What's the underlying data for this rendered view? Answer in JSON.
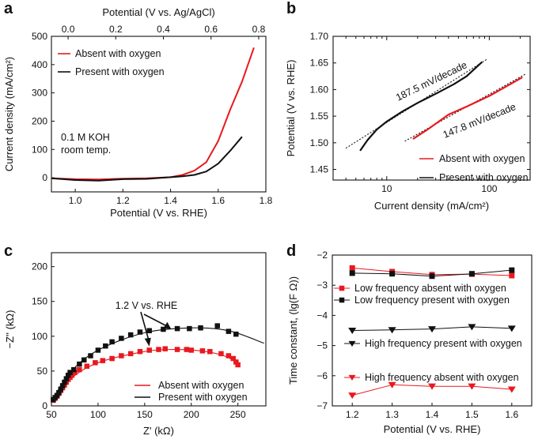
{
  "chart_data": [
    {
      "panel": "a",
      "type": "line",
      "xlabel": "Potential (V vs. RHE)",
      "ylabel": "Current density (mA/cm²)",
      "x2label": "Potential (V vs. Ag/AgCl)",
      "xlim": [
        0.9,
        1.8
      ],
      "ylim": [
        -50,
        500
      ],
      "x2lim": [
        -0.07,
        0.83
      ],
      "xticks": [
        "1.0",
        "1.2",
        "1.4",
        "1.6",
        "1.8"
      ],
      "yticks": [
        "0",
        "100",
        "200",
        "300",
        "400",
        "500"
      ],
      "x2ticks": [
        "0.0",
        "0.2",
        "0.4",
        "0.6",
        "0.8"
      ],
      "annotation": [
        "0.1 M KOH",
        "room temp."
      ],
      "series": [
        {
          "name": "Absent with oxygen",
          "color": "#e8191f",
          "x": [
            0.9,
            1.0,
            1.1,
            1.2,
            1.3,
            1.4,
            1.45,
            1.5,
            1.55,
            1.6,
            1.65,
            1.7,
            1.75
          ],
          "y": [
            -2,
            -5,
            -6,
            -3,
            -2,
            2,
            10,
            25,
            55,
            130,
            240,
            340,
            460
          ]
        },
        {
          "name": "Present with oxygen",
          "color": "#111111",
          "x": [
            0.9,
            1.0,
            1.1,
            1.2,
            1.3,
            1.4,
            1.45,
            1.5,
            1.55,
            1.6,
            1.65,
            1.7
          ],
          "y": [
            -2,
            -8,
            -10,
            -5,
            -4,
            2,
            5,
            10,
            22,
            50,
            95,
            145
          ]
        }
      ]
    },
    {
      "panel": "b",
      "type": "line",
      "xlabel": "Current density (mA/cm²)",
      "ylabel": "Potential (V vs. RHE)",
      "xscale": "log",
      "xlim": [
        3,
        250
      ],
      "ylim": [
        1.43,
        1.7
      ],
      "xticks": [
        "10",
        "100"
      ],
      "yticks": [
        "1.45",
        "1.50",
        "1.55",
        "1.60",
        "1.65",
        "1.70"
      ],
      "annotations": [
        "187.5 mV/decade",
        "147.8 mV/decade"
      ],
      "series": [
        {
          "name": "Absent with oxygen",
          "color": "#e8191f",
          "x": [
            18,
            25,
            40,
            60,
            100,
            150,
            210
          ],
          "y": [
            1.507,
            1.525,
            1.553,
            1.568,
            1.588,
            1.607,
            1.623
          ]
        },
        {
          "name": "Present with oxygen",
          "color": "#111111",
          "x": [
            5.5,
            6.5,
            8,
            10,
            14,
            20,
            30,
            45,
            60,
            85
          ],
          "y": [
            1.485,
            1.505,
            1.525,
            1.54,
            1.558,
            1.575,
            1.592,
            1.61,
            1.625,
            1.652
          ]
        }
      ],
      "fits": [
        {
          "x": [
            4,
            95
          ],
          "y": [
            1.49,
            1.657
          ]
        },
        {
          "x": [
            15,
            230
          ],
          "y": [
            1.503,
            1.63
          ]
        }
      ]
    },
    {
      "panel": "c",
      "type": "scatter",
      "xlabel": "Z' (kΩ)",
      "ylabel": "−Z'' (kΩ)",
      "xlim": [
        50,
        280
      ],
      "ylim": [
        0,
        220
      ],
      "xticks": [
        "50",
        "100",
        "150",
        "200",
        "250"
      ],
      "yticks": [
        "0",
        "50",
        "100",
        "150",
        "200"
      ],
      "annotation": "1.2 V vs. RHE",
      "series": [
        {
          "name": "Absent with oxygen",
          "color": "#e8191f",
          "points": [
            [
              52,
              8
            ],
            [
              54,
              11
            ],
            [
              56,
              14
            ],
            [
              58,
              18
            ],
            [
              60,
              22
            ],
            [
              62,
              26
            ],
            [
              64,
              30
            ],
            [
              66,
              34
            ],
            [
              68,
              38
            ],
            [
              70,
              41
            ],
            [
              72,
              44
            ],
            [
              75,
              48
            ],
            [
              80,
              52
            ],
            [
              88,
              57
            ],
            [
              97,
              62
            ],
            [
              105,
              65
            ],
            [
              115,
              68
            ],
            [
              125,
              72
            ],
            [
              135,
              75
            ],
            [
              145,
              78
            ],
            [
              155,
              80
            ],
            [
              165,
              81
            ],
            [
              172,
              82
            ],
            [
              185,
              81
            ],
            [
              195,
              81
            ],
            [
              200,
              80
            ],
            [
              212,
              79
            ],
            [
              220,
              78
            ],
            [
              232,
              75
            ],
            [
              240,
              72
            ],
            [
              245,
              68
            ],
            [
              248,
              63
            ],
            [
              250,
              59
            ]
          ],
          "fit": [
            [
              50,
              5
            ],
            [
              70,
              38
            ],
            [
              100,
              62
            ],
            [
              150,
              78
            ],
            [
              180,
              81
            ],
            [
              210,
              79
            ],
            [
              235,
              72
            ],
            [
              252,
              60
            ]
          ]
        },
        {
          "name": "Present with oxygen",
          "color": "#111111",
          "points": [
            [
              52,
              9
            ],
            [
              54,
              12
            ],
            [
              56,
              15
            ],
            [
              58,
              19
            ],
            [
              60,
              24
            ],
            [
              62,
              29
            ],
            [
              64,
              34
            ],
            [
              66,
              39
            ],
            [
              68,
              44
            ],
            [
              70,
              48
            ],
            [
              74,
              52
            ],
            [
              80,
              60
            ],
            [
              85,
              66
            ],
            [
              92,
              72
            ],
            [
              100,
              80
            ],
            [
              108,
              86
            ],
            [
              115,
              92
            ],
            [
              125,
              97
            ],
            [
              135,
              102
            ],
            [
              145,
              106
            ],
            [
              155,
              108
            ],
            [
              170,
              110
            ],
            [
              185,
              111
            ],
            [
              198,
              111
            ],
            [
              210,
              112
            ],
            [
              228,
              115
            ],
            [
              240,
              107
            ],
            [
              248,
              103
            ]
          ],
          "fit": [
            [
              50,
              6
            ],
            [
              70,
              48
            ],
            [
              100,
              80
            ],
            [
              150,
              105
            ],
            [
              200,
              112
            ],
            [
              240,
              108
            ],
            [
              278,
              90
            ]
          ]
        }
      ]
    },
    {
      "panel": "d",
      "type": "line",
      "xlabel": "Potential (V vs. RHE)",
      "ylabel": "Time constant, (lg(F Ω))",
      "xlim": [
        1.15,
        1.65
      ],
      "ylim": [
        -7,
        -2
      ],
      "xticks": [
        "1.2",
        "1.3",
        "1.4",
        "1.5",
        "1.6"
      ],
      "yticks": [
        "−2",
        "−3",
        "−4",
        "−5",
        "−6",
        "−7"
      ],
      "x": [
        1.2,
        1.3,
        1.4,
        1.5,
        1.6
      ],
      "series": [
        {
          "name": "Low frequency absent with oxygen",
          "color": "#e8191f",
          "marker": "square",
          "values": [
            -2.43,
            -2.55,
            -2.65,
            -2.63,
            -2.68
          ]
        },
        {
          "name": "Low frequency present with oxygen",
          "color": "#111111",
          "marker": "square",
          "values": [
            -2.6,
            -2.62,
            -2.7,
            -2.62,
            -2.5
          ]
        },
        {
          "name": "High frequency present with oxygen",
          "color": "#111111",
          "marker": "triangle-down",
          "values": [
            -4.5,
            -4.48,
            -4.45,
            -4.38,
            -4.43
          ]
        },
        {
          "name": "High frequency absent with oxygen",
          "color": "#e8191f",
          "marker": "triangle-down",
          "values": [
            -6.65,
            -6.3,
            -6.35,
            -6.35,
            -6.45
          ]
        }
      ]
    }
  ]
}
